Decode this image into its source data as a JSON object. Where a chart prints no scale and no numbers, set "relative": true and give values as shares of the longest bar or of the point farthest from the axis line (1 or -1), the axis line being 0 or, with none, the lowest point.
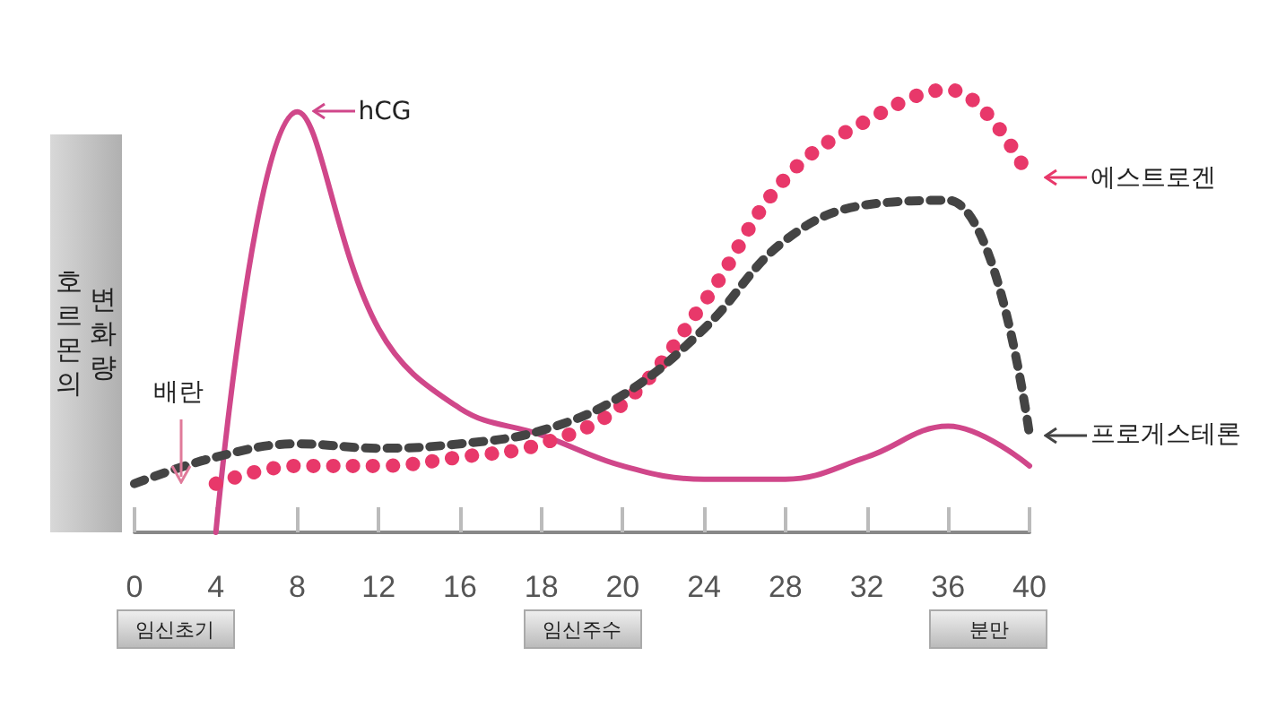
{
  "chart_data": {
    "type": "line",
    "relative": true,
    "ylabel": "호르몬의 변화량",
    "categories": [
      "0",
      "4",
      "8",
      "12",
      "16",
      "18",
      "20",
      "24",
      "28",
      "32",
      "36",
      "40"
    ],
    "series": [
      {
        "name": "hCG",
        "color": "#d0478a",
        "line_style": "solid",
        "values": [
          null,
          0,
          0.95,
          0.46,
          0.28,
          0.22,
          0.15,
          0.12,
          0.12,
          0.17,
          0.24,
          0.15
        ]
      },
      {
        "name": "에스트로겐",
        "color": "#e8386a",
        "line_style": "dotted",
        "values": [
          null,
          0.11,
          0.15,
          0.15,
          0.17,
          0.2,
          0.29,
          0.52,
          0.8,
          0.93,
          1,
          0.8
        ]
      },
      {
        "name": "프로게스테론",
        "color": "#444444",
        "line_style": "dashed",
        "values": [
          0.11,
          0.17,
          0.2,
          0.19,
          0.2,
          0.23,
          0.31,
          0.46,
          0.66,
          0.74,
          0.75,
          0.22
        ]
      }
    ],
    "annotations": [
      "배란",
      "임신초기",
      "임신주수",
      "분만"
    ],
    "marker": "none",
    "grid": false,
    "legend": "right"
  }
}
